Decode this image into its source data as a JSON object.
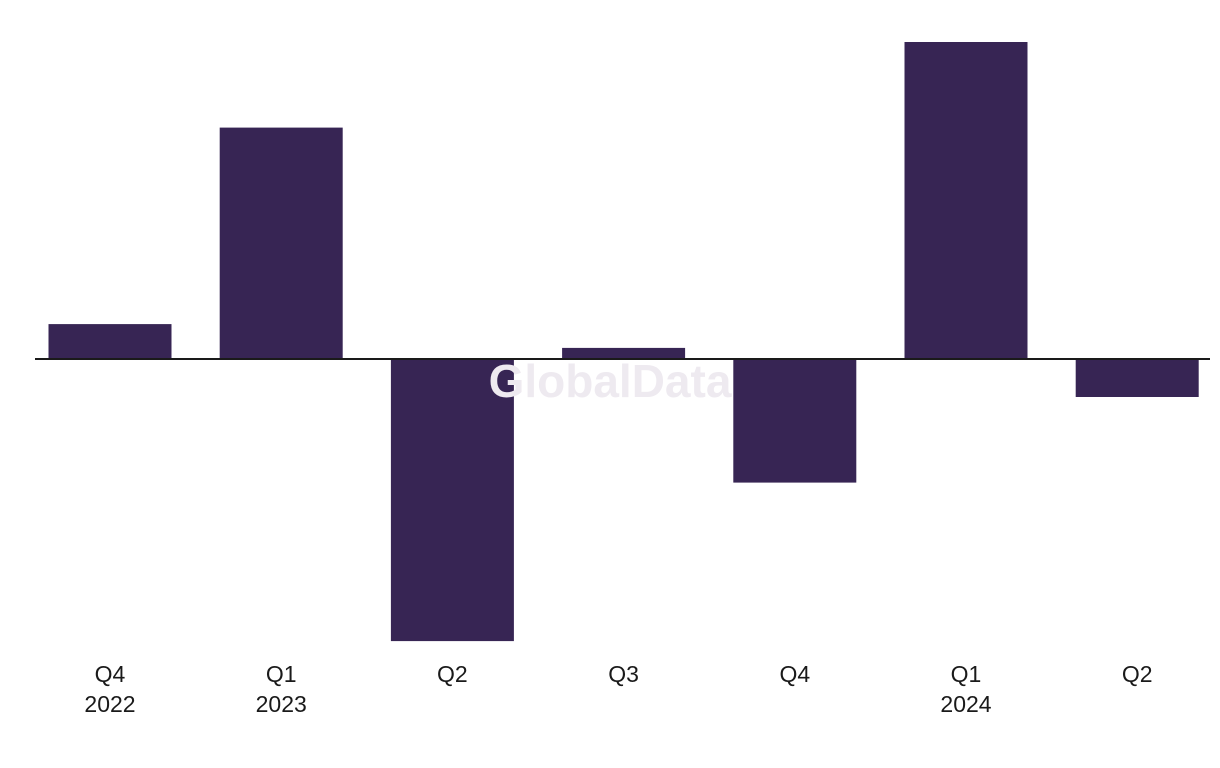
{
  "watermark": "GlobalData",
  "colors": {
    "bar": "#372554",
    "axis": "#1a1a1a",
    "background": "#ffffff",
    "watermark": "#eeeaf0"
  },
  "chart_data": {
    "type": "bar",
    "categories": [
      {
        "quarter": "Q4",
        "year": "2022"
      },
      {
        "quarter": "Q1",
        "year": "2023"
      },
      {
        "quarter": "Q2",
        "year": ""
      },
      {
        "quarter": "Q3",
        "year": ""
      },
      {
        "quarter": "Q4",
        "year": ""
      },
      {
        "quarter": "Q1",
        "year": "2024"
      },
      {
        "quarter": "Q2",
        "year": ""
      }
    ],
    "values": [
      11,
      73,
      -89,
      3.5,
      -39,
      100,
      -12
    ],
    "ylim": [
      -89,
      100
    ],
    "grid": false,
    "legend": "none",
    "title": "",
    "xlabel": "",
    "ylabel": ""
  }
}
